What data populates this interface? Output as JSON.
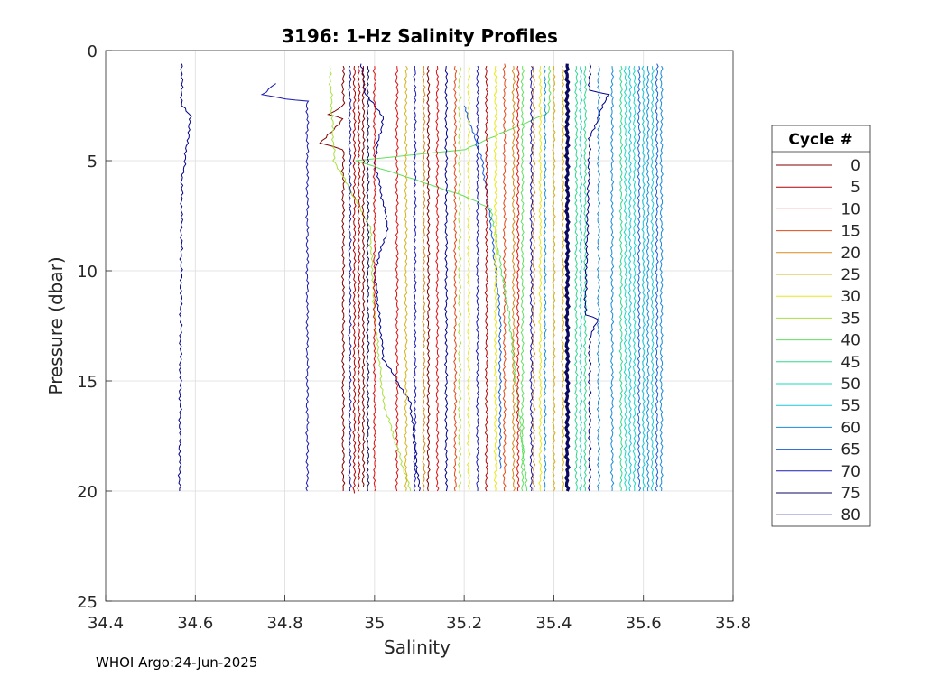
{
  "footer_text": "WHOI Argo:24-Jun-2025",
  "chart_data": {
    "type": "line",
    "title": "3196: 1-Hz Salinity Profiles",
    "xlabel": "Salinity",
    "ylabel": "Pressure (dbar)",
    "xlim": [
      34.4,
      35.8
    ],
    "ylim": [
      0,
      25
    ],
    "y_reversed": true,
    "xticks": [
      34.4,
      34.6,
      34.8,
      35,
      35.2,
      35.4,
      35.6,
      35.8
    ],
    "xtick_labels": [
      "34.4",
      "34.6",
      "34.8",
      "35",
      "35.2",
      "35.4",
      "35.6",
      "35.8"
    ],
    "yticks": [
      0,
      5,
      10,
      15,
      20,
      25
    ],
    "ytick_labels": [
      "0",
      "5",
      "10",
      "15",
      "20",
      "25"
    ],
    "grid": true,
    "legend": {
      "title": "Cycle #",
      "placement": "outside-right",
      "entries": [
        {
          "label": "0",
          "color": "#800000"
        },
        {
          "label": "5",
          "color": "#b00000"
        },
        {
          "label": "10",
          "color": "#dd1010"
        },
        {
          "label": "15",
          "color": "#e04a1a"
        },
        {
          "label": "20",
          "color": "#d98a1a"
        },
        {
          "label": "25",
          "color": "#d6b21a"
        },
        {
          "label": "30",
          "color": "#e8e81a"
        },
        {
          "label": "35",
          "color": "#a8e040"
        },
        {
          "label": "40",
          "color": "#60e060"
        },
        {
          "label": "45",
          "color": "#30d890"
        },
        {
          "label": "50",
          "color": "#1ad8c0"
        },
        {
          "label": "55",
          "color": "#1ac8d8"
        },
        {
          "label": "60",
          "color": "#1a8cd8"
        },
        {
          "label": "65",
          "color": "#1a5ad8"
        },
        {
          "label": "70",
          "color": "#1a1ab0"
        },
        {
          "label": "75",
          "color": "#0a0a60"
        },
        {
          "label": "80",
          "color": "#00008c"
        }
      ]
    },
    "series": [
      {
        "name": "0",
        "color": "#800000",
        "points": [
          [
            34.93,
            0.7
          ],
          [
            34.93,
            2.5
          ],
          [
            34.9,
            2.9
          ],
          [
            34.93,
            3.1
          ],
          [
            34.88,
            4.2
          ],
          [
            34.93,
            4.5
          ],
          [
            34.93,
            20
          ]
        ]
      },
      {
        "name": "5",
        "color": "#b00000",
        "points": [
          [
            34.955,
            0.7
          ],
          [
            34.955,
            20.1
          ]
        ]
      },
      {
        "name": "10",
        "color": "#dd1010",
        "points": [
          [
            35.05,
            0.7
          ],
          [
            35.05,
            20
          ]
        ]
      },
      {
        "name": "15",
        "color": "#e04a1a",
        "points": [
          [
            35.29,
            0.6
          ],
          [
            35.29,
            20
          ]
        ]
      },
      {
        "name": "20",
        "color": "#d98a1a",
        "points": [
          [
            35.355,
            0.7
          ],
          [
            35.355,
            20
          ]
        ]
      },
      {
        "name": "25",
        "color": "#d6b21a",
        "points": [
          [
            35.42,
            0.7
          ],
          [
            35.42,
            20
          ]
        ]
      },
      {
        "name": "30",
        "color": "#e8e81a",
        "points": [
          [
            35.21,
            0.7
          ],
          [
            35.21,
            20
          ]
        ]
      },
      {
        "name": "35",
        "color": "#a8e040",
        "points": [
          [
            34.9,
            0.7
          ],
          [
            34.91,
            5
          ],
          [
            34.99,
            8
          ],
          [
            35.0,
            12
          ],
          [
            35.02,
            16
          ],
          [
            35.08,
            20
          ]
        ]
      },
      {
        "name": "40",
        "color": "#60e060",
        "points": [
          [
            35.39,
            0.7
          ],
          [
            35.39,
            2.8
          ],
          [
            35.2,
            4.5
          ],
          [
            34.96,
            5
          ],
          [
            35.2,
            6.6
          ],
          [
            35.26,
            7.2
          ],
          [
            35.3,
            12
          ],
          [
            35.34,
            20
          ]
        ]
      },
      {
        "name": "45",
        "color": "#30d890",
        "points": [
          [
            35.47,
            0.7
          ],
          [
            35.47,
            20
          ]
        ]
      },
      {
        "name": "50",
        "color": "#1ad8c0",
        "points": [
          [
            35.56,
            0.7
          ],
          [
            35.56,
            20
          ]
        ]
      },
      {
        "name": "55",
        "color": "#1ac8d8",
        "points": [
          [
            35.6,
            0.7
          ],
          [
            35.6,
            20
          ]
        ]
      },
      {
        "name": "60",
        "color": "#1a8cd8",
        "points": [
          [
            35.53,
            0.7
          ],
          [
            35.53,
            20
          ]
        ]
      },
      {
        "name": "65",
        "color": "#1a5ad8",
        "points": [
          [
            35.63,
            0.6
          ],
          [
            35.63,
            20
          ]
        ]
      },
      {
        "name": "70",
        "color": "#1a1ab0",
        "points": [
          [
            35.09,
            0.7
          ],
          [
            35.09,
            20
          ]
        ]
      },
      {
        "name": "75",
        "color": "#0a0a60",
        "points": [
          [
            35.43,
            0.6
          ],
          [
            35.43,
            20
          ]
        ]
      },
      {
        "name": "80",
        "color": "#00008c",
        "points": [
          [
            34.57,
            0.6
          ],
          [
            34.57,
            2.5
          ],
          [
            34.59,
            3
          ],
          [
            34.57,
            6
          ],
          [
            34.565,
            20
          ]
        ]
      },
      {
        "name": "",
        "color": "#1a1ab0",
        "points": [
          [
            34.78,
            1.5
          ],
          [
            34.75,
            2.0
          ],
          [
            34.8,
            2.2
          ],
          [
            34.85,
            2.3
          ],
          [
            34.85,
            20
          ]
        ]
      },
      {
        "name": "",
        "color": "#00008c",
        "points": [
          [
            34.97,
            0.6
          ],
          [
            34.98,
            2
          ],
          [
            35.02,
            3
          ],
          [
            35.0,
            5
          ],
          [
            35.03,
            8
          ],
          [
            35.0,
            10
          ],
          [
            35.02,
            14
          ],
          [
            35.08,
            16
          ],
          [
            35.1,
            20
          ]
        ]
      },
      {
        "name": "",
        "color": "#00008c",
        "points": [
          [
            35.48,
            0.6
          ],
          [
            35.48,
            1.8
          ],
          [
            35.52,
            2
          ],
          [
            35.48,
            4
          ],
          [
            35.47,
            12
          ],
          [
            35.5,
            12.2
          ],
          [
            35.48,
            13
          ],
          [
            35.48,
            20
          ]
        ]
      },
      {
        "name": "",
        "color": "#1a5ad8",
        "points": [
          [
            35.2,
            2.5
          ],
          [
            35.24,
            5
          ],
          [
            35.26,
            8
          ],
          [
            35.28,
            12
          ],
          [
            35.28,
            19
          ]
        ]
      },
      {
        "name": "",
        "color": "#b00000",
        "points": [
          [
            34.965,
            0.7
          ],
          [
            34.965,
            20
          ]
        ]
      },
      {
        "name": "",
        "color": "#800000",
        "points": [
          [
            34.975,
            0.7
          ],
          [
            34.975,
            19.8
          ]
        ]
      },
      {
        "name": "",
        "color": "#dd1010",
        "points": [
          [
            35.0,
            0.7
          ],
          [
            35.0,
            20
          ]
        ]
      },
      {
        "name": "",
        "color": "#1a1ab0",
        "points": [
          [
            34.945,
            0.7
          ],
          [
            34.945,
            20
          ]
        ]
      },
      {
        "name": "",
        "color": "#0a0a60",
        "points": [
          [
            34.985,
            0.7
          ],
          [
            34.985,
            20
          ]
        ]
      },
      {
        "name": "",
        "color": "#d6b21a",
        "points": [
          [
            35.07,
            0.7
          ],
          [
            35.07,
            20
          ]
        ]
      },
      {
        "name": "",
        "color": "#d98a1a",
        "points": [
          [
            35.11,
            0.7
          ],
          [
            35.11,
            20
          ]
        ]
      },
      {
        "name": "",
        "color": "#800000",
        "points": [
          [
            35.12,
            0.7
          ],
          [
            35.12,
            20
          ]
        ]
      },
      {
        "name": "",
        "color": "#dd1010",
        "points": [
          [
            35.14,
            0.7
          ],
          [
            35.14,
            20
          ]
        ]
      },
      {
        "name": "",
        "color": "#00008c",
        "points": [
          [
            35.16,
            0.7
          ],
          [
            35.16,
            20
          ]
        ]
      },
      {
        "name": "",
        "color": "#e04a1a",
        "points": [
          [
            35.18,
            0.7
          ],
          [
            35.18,
            20
          ]
        ]
      },
      {
        "name": "",
        "color": "#a8e040",
        "points": [
          [
            35.19,
            0.7
          ],
          [
            35.19,
            20
          ]
        ]
      },
      {
        "name": "",
        "color": "#1a1ab0",
        "points": [
          [
            35.23,
            0.7
          ],
          [
            35.23,
            20
          ]
        ]
      },
      {
        "name": "",
        "color": "#b00000",
        "points": [
          [
            35.25,
            0.7
          ],
          [
            35.25,
            20
          ]
        ]
      },
      {
        "name": "",
        "color": "#e8e81a",
        "points": [
          [
            35.27,
            0.7
          ],
          [
            35.27,
            20
          ]
        ]
      },
      {
        "name": "",
        "color": "#d98a1a",
        "points": [
          [
            35.31,
            0.7
          ],
          [
            35.31,
            20
          ]
        ]
      },
      {
        "name": "",
        "color": "#dd1010",
        "points": [
          [
            35.32,
            0.7
          ],
          [
            35.32,
            20
          ]
        ]
      },
      {
        "name": "",
        "color": "#60e060",
        "points": [
          [
            35.33,
            0.7
          ],
          [
            35.33,
            20
          ]
        ]
      },
      {
        "name": "",
        "color": "#1a1ab0",
        "points": [
          [
            35.35,
            0.7
          ],
          [
            35.35,
            20
          ]
        ]
      },
      {
        "name": "",
        "color": "#e8e81a",
        "points": [
          [
            35.37,
            0.7
          ],
          [
            35.37,
            20
          ]
        ]
      },
      {
        "name": "",
        "color": "#1a8cd8",
        "points": [
          [
            35.38,
            0.7
          ],
          [
            35.38,
            20
          ]
        ]
      },
      {
        "name": "",
        "color": "#d6b21a",
        "points": [
          [
            35.4,
            0.7
          ],
          [
            35.4,
            20
          ]
        ]
      },
      {
        "name": "",
        "color": "#30d890",
        "points": [
          [
            35.45,
            0.7
          ],
          [
            35.45,
            20
          ]
        ]
      },
      {
        "name": "",
        "color": "#1ad8c0",
        "points": [
          [
            35.46,
            0.7
          ],
          [
            35.46,
            20
          ]
        ]
      },
      {
        "name": "",
        "color": "#1a8cd8",
        "points": [
          [
            35.5,
            0.7
          ],
          [
            35.5,
            20
          ]
        ]
      },
      {
        "name": "",
        "color": "#30d890",
        "points": [
          [
            35.55,
            0.7
          ],
          [
            35.55,
            20
          ]
        ]
      },
      {
        "name": "",
        "color": "#1ac8d8",
        "points": [
          [
            35.57,
            0.7
          ],
          [
            35.57,
            20
          ]
        ]
      },
      {
        "name": "",
        "color": "#1ad8c0",
        "points": [
          [
            35.58,
            0.7
          ],
          [
            35.58,
            20
          ]
        ]
      },
      {
        "name": "",
        "color": "#1a5ad8",
        "points": [
          [
            35.59,
            0.7
          ],
          [
            35.59,
            20
          ]
        ]
      },
      {
        "name": "",
        "color": "#1a8cd8",
        "points": [
          [
            35.61,
            0.7
          ],
          [
            35.61,
            20
          ]
        ]
      },
      {
        "name": "",
        "color": "#1ac8d8",
        "points": [
          [
            35.62,
            0.7
          ],
          [
            35.62,
            20
          ]
        ]
      },
      {
        "name": "",
        "color": "#1a8cd8",
        "points": [
          [
            35.64,
            0.7
          ],
          [
            35.64,
            20
          ]
        ]
      }
    ]
  }
}
